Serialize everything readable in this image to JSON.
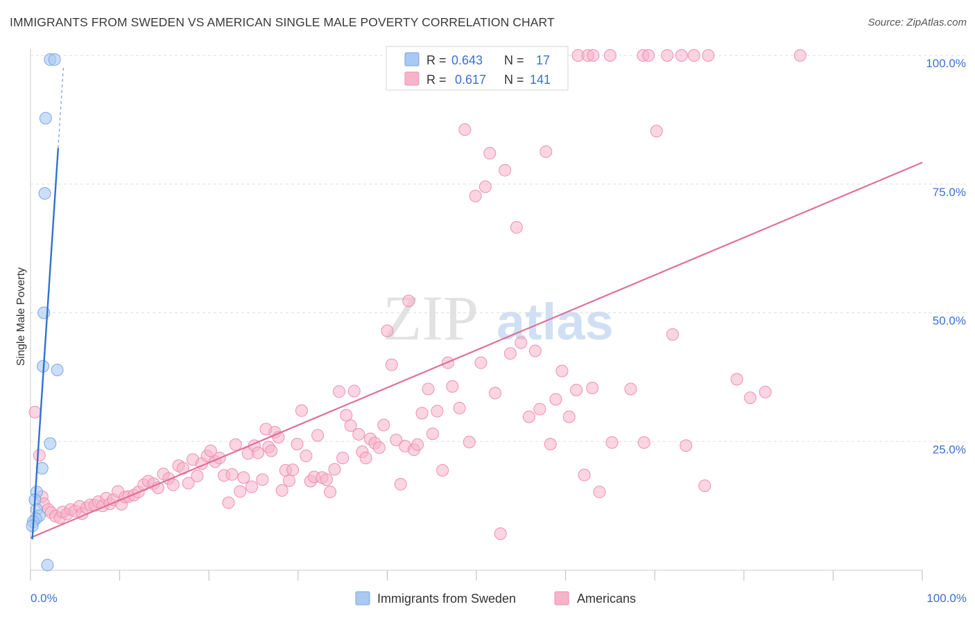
{
  "header": {
    "title": "IMMIGRANTS FROM SWEDEN VS AMERICAN SINGLE MALE POVERTY CORRELATION CHART",
    "source": "Source: ZipAtlas.com"
  },
  "watermark": {
    "zip": "ZIP",
    "atlas": "atlas"
  },
  "colors": {
    "sweden_fill": "#a9c8f2",
    "sweden_stroke": "#7aa7e3",
    "sweden_line": "#2f72cf",
    "americans_fill": "#f7b3c8",
    "americans_stroke": "#ee8fb0",
    "americans_line": "#e06f98",
    "value_text": "#3b6fd0",
    "grid": "#dddddd"
  },
  "chart_data": {
    "type": "scatter",
    "title": "IMMIGRANTS FROM SWEDEN VS AMERICAN SINGLE MALE POVERTY CORRELATION CHART",
    "xlabel": "",
    "ylabel": "Single Male Poverty",
    "xlim": [
      0,
      100
    ],
    "ylim": [
      0,
      100
    ],
    "x_tick_labels": [
      "0.0%",
      "100.0%"
    ],
    "y_tick_values": [
      25,
      50,
      75,
      100
    ],
    "y_tick_labels": [
      "25.0%",
      "50.0%",
      "75.0%",
      "100.0%"
    ],
    "legend_stats": [
      {
        "r_label": "R =",
        "r_value": "0.643",
        "n_label": "N =",
        "n_value": "17"
      },
      {
        "r_label": "R =",
        "r_value": "0.617",
        "n_label": "N =",
        "n_value": "141"
      }
    ],
    "legend_bottom": [
      "Immigrants from Sweden",
      "Americans"
    ],
    "series": [
      {
        "name": "Immigrants from Sweden",
        "r": 0.643,
        "n": 17,
        "trend": {
          "x0": 0.2,
          "y0": 6.0,
          "x1": 3.1,
          "y1": 82.0,
          "dash_x1": 3.7,
          "dash_y1": 98.0
        },
        "points": [
          [
            2.2,
            99.2
          ],
          [
            2.7,
            99.2
          ],
          [
            1.7,
            87.8
          ],
          [
            1.6,
            73.2
          ],
          [
            1.5,
            50.0
          ],
          [
            1.4,
            39.6
          ],
          [
            3.0,
            38.9
          ],
          [
            2.2,
            24.6
          ],
          [
            1.3,
            19.8
          ],
          [
            0.7,
            15.2
          ],
          [
            0.5,
            13.7
          ],
          [
            0.7,
            11.8
          ],
          [
            1.0,
            10.6
          ],
          [
            0.6,
            10.0
          ],
          [
            0.3,
            9.4
          ],
          [
            0.2,
            8.6
          ],
          [
            1.9,
            1.0
          ]
        ]
      },
      {
        "name": "Americans",
        "r": 0.617,
        "n": 141,
        "trend": {
          "x0": 0.0,
          "y0": 6.3,
          "x1": 100.0,
          "y1": 79.2
        },
        "points": [
          [
            0.5,
            30.7
          ],
          [
            1.0,
            22.3
          ],
          [
            1.3,
            14.3
          ],
          [
            1.5,
            12.9
          ],
          [
            2.0,
            11.8
          ],
          [
            2.3,
            11.2
          ],
          [
            2.8,
            10.5
          ],
          [
            3.3,
            10.2
          ],
          [
            3.6,
            11.3
          ],
          [
            4.1,
            10.9
          ],
          [
            4.5,
            11.8
          ],
          [
            5.0,
            11.5
          ],
          [
            5.5,
            12.4
          ],
          [
            5.8,
            11.0
          ],
          [
            6.3,
            12.1
          ],
          [
            6.7,
            12.7
          ],
          [
            7.2,
            12.6
          ],
          [
            7.6,
            13.3
          ],
          [
            8.1,
            12.5
          ],
          [
            8.5,
            14.0
          ],
          [
            8.9,
            12.9
          ],
          [
            9.3,
            13.7
          ],
          [
            9.8,
            15.3
          ],
          [
            10.2,
            12.8
          ],
          [
            10.6,
            14.2
          ],
          [
            11.0,
            14.3
          ],
          [
            11.6,
            14.6
          ],
          [
            12.1,
            15.2
          ],
          [
            12.7,
            16.6
          ],
          [
            13.2,
            17.3
          ],
          [
            13.8,
            16.8
          ],
          [
            14.3,
            16.0
          ],
          [
            14.9,
            18.7
          ],
          [
            15.5,
            17.8
          ],
          [
            16.0,
            16.6
          ],
          [
            16.6,
            20.3
          ],
          [
            17.1,
            19.8
          ],
          [
            17.7,
            16.9
          ],
          [
            18.2,
            21.5
          ],
          [
            18.7,
            18.3
          ],
          [
            19.2,
            20.7
          ],
          [
            19.8,
            22.2
          ],
          [
            20.2,
            23.2
          ],
          [
            20.7,
            21.1
          ],
          [
            21.2,
            21.8
          ],
          [
            21.7,
            18.4
          ],
          [
            22.2,
            13.1
          ],
          [
            22.6,
            18.6
          ],
          [
            23.0,
            24.4
          ],
          [
            23.5,
            15.3
          ],
          [
            23.9,
            18.0
          ],
          [
            24.4,
            22.7
          ],
          [
            24.8,
            16.2
          ],
          [
            25.1,
            24.2
          ],
          [
            25.5,
            22.8
          ],
          [
            26.0,
            17.6
          ],
          [
            26.4,
            27.4
          ],
          [
            26.7,
            23.9
          ],
          [
            27.0,
            23.2
          ],
          [
            27.4,
            26.8
          ],
          [
            27.8,
            25.8
          ],
          [
            28.2,
            15.5
          ],
          [
            28.6,
            19.4
          ],
          [
            29.0,
            17.4
          ],
          [
            29.4,
            19.5
          ],
          [
            29.9,
            24.5
          ],
          [
            30.4,
            31.0
          ],
          [
            30.9,
            22.2
          ],
          [
            31.4,
            17.3
          ],
          [
            31.8,
            18.1
          ],
          [
            32.2,
            26.2
          ],
          [
            32.7,
            18.0
          ],
          [
            33.2,
            17.6
          ],
          [
            33.6,
            15.2
          ],
          [
            34.1,
            19.6
          ],
          [
            34.6,
            34.7
          ],
          [
            35.0,
            21.8
          ],
          [
            35.4,
            30.1
          ],
          [
            35.9,
            28.1
          ],
          [
            36.3,
            34.8
          ],
          [
            36.8,
            26.4
          ],
          [
            37.2,
            23.0
          ],
          [
            37.6,
            21.8
          ],
          [
            38.1,
            25.5
          ],
          [
            38.6,
            24.7
          ],
          [
            39.1,
            23.8
          ],
          [
            39.6,
            28.2
          ],
          [
            40.0,
            46.5
          ],
          [
            40.5,
            39.9
          ],
          [
            41.0,
            25.3
          ],
          [
            41.5,
            16.7
          ],
          [
            42.0,
            24.1
          ],
          [
            42.4,
            52.3
          ],
          [
            43.0,
            23.4
          ],
          [
            43.4,
            24.4
          ],
          [
            43.9,
            30.5
          ],
          [
            44.6,
            35.2
          ],
          [
            45.1,
            26.5
          ],
          [
            45.6,
            30.9
          ],
          [
            46.2,
            19.4
          ],
          [
            46.8,
            40.3
          ],
          [
            47.3,
            35.7
          ],
          [
            48.1,
            31.5
          ],
          [
            48.7,
            85.6
          ],
          [
            49.2,
            24.9
          ],
          [
            49.9,
            72.7
          ],
          [
            50.5,
            40.3
          ],
          [
            51.0,
            74.5
          ],
          [
            51.5,
            81.0
          ],
          [
            52.1,
            34.4
          ],
          [
            52.7,
            7.1
          ],
          [
            53.2,
            77.7
          ],
          [
            53.8,
            42.1
          ],
          [
            54.5,
            66.6
          ],
          [
            55.0,
            44.2
          ],
          [
            55.9,
            29.8
          ],
          [
            56.6,
            42.6
          ],
          [
            57.1,
            31.3
          ],
          [
            57.8,
            81.3
          ],
          [
            58.3,
            24.5
          ],
          [
            58.9,
            33.2
          ],
          [
            59.6,
            38.7
          ],
          [
            60.4,
            29.8
          ],
          [
            61.2,
            35.0
          ],
          [
            62.1,
            18.5
          ],
          [
            63.0,
            35.4
          ],
          [
            63.8,
            15.2
          ],
          [
            65.2,
            24.8
          ],
          [
            67.3,
            35.2
          ],
          [
            68.8,
            24.8
          ],
          [
            70.2,
            85.3
          ],
          [
            72.0,
            45.8
          ],
          [
            73.5,
            24.2
          ],
          [
            75.6,
            16.4
          ],
          [
            79.2,
            37.1
          ],
          [
            80.7,
            33.5
          ],
          [
            82.4,
            34.6
          ]
        ],
        "top_points": [
          47.3,
          53.1,
          56.8,
          57.6,
          58.9,
          61.4,
          62.5,
          63.1,
          65.0,
          68.7,
          69.3,
          71.4,
          73.0,
          74.4,
          76.0,
          86.3
        ]
      }
    ]
  }
}
